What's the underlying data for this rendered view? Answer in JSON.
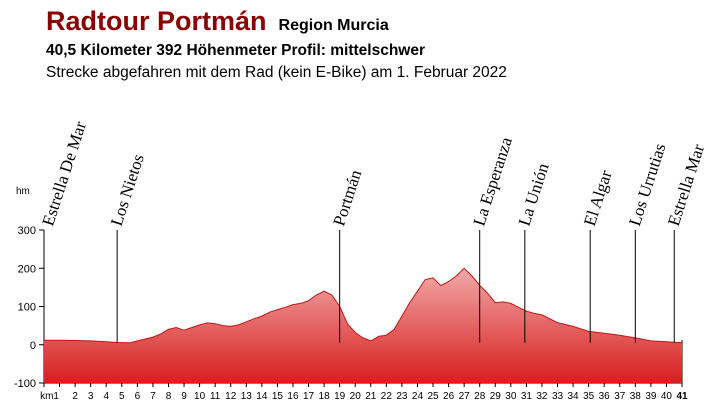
{
  "header": {
    "title": "Radtour Portmán",
    "region": "Region Murcia",
    "stats": "40,5 Kilometer  392 Höhenmeter  Profil: mittelschwer",
    "note": "Strecke abgefahren mit dem Rad (kein E-Bike) am 1. Februar 2022"
  },
  "colors": {
    "title": "#8b0000",
    "fill_top": "#f2a9a9",
    "fill_bottom": "#d81e1e",
    "line": "#c01818"
  },
  "chart_data": {
    "type": "area",
    "ylabel": "hm",
    "xlabel": "km",
    "ylim": [
      -100,
      300
    ],
    "xlim": [
      0,
      41
    ],
    "yticks": [
      -100,
      0,
      100,
      200,
      300
    ],
    "ytick_labels": [
      "-100",
      "0",
      "100",
      "200",
      "300"
    ],
    "xticks": [
      1,
      2,
      3,
      4,
      5,
      6,
      7,
      8,
      9,
      10,
      11,
      12,
      13,
      14,
      15,
      16,
      17,
      18,
      19,
      20,
      21,
      22,
      23,
      24,
      25,
      26,
      27,
      28,
      29,
      30,
      31,
      32,
      33,
      34,
      35,
      36,
      37,
      38,
      39,
      40,
      41
    ],
    "xtick_labels": [
      "km1",
      "2",
      "3",
      "4",
      "5",
      "6",
      "7",
      "8",
      "9",
      "10",
      "11",
      "12",
      "13",
      "14",
      "15",
      "16",
      "17",
      "18",
      "19",
      "20",
      "21",
      "22",
      "23",
      "24",
      "25",
      "26",
      "27",
      "28",
      "29",
      "30",
      "31",
      "32",
      "33",
      "34",
      "35",
      "36",
      "37",
      "38",
      "39",
      "40",
      "41"
    ],
    "series": [
      {
        "x": [
          0,
          1,
          2,
          3,
          4,
          4.7,
          5.5,
          6,
          6.5,
          7,
          7.5,
          8,
          8.5,
          9,
          9.5,
          10,
          10.5,
          11,
          11.5,
          12,
          12.5,
          13,
          13.5,
          14,
          14.5,
          15,
          15.5,
          16,
          16.5,
          17,
          17.5,
          18,
          18.5,
          19,
          19.5,
          20,
          20.5,
          21,
          21.5,
          22,
          22.5,
          23,
          23.5,
          24,
          24.5,
          25,
          25.5,
          26,
          26.5,
          27,
          27.5,
          28,
          28.5,
          29,
          29.5,
          30,
          30.5,
          31,
          31.5,
          32,
          33,
          34,
          35,
          36,
          37,
          38,
          39,
          40,
          41
        ],
        "y": [
          12,
          12,
          11,
          10,
          8,
          6,
          5,
          10,
          15,
          20,
          28,
          40,
          45,
          38,
          45,
          52,
          57,
          55,
          50,
          48,
          52,
          60,
          68,
          75,
          85,
          92,
          98,
          105,
          108,
          115,
          130,
          140,
          130,
          100,
          55,
          32,
          18,
          10,
          22,
          25,
          40,
          75,
          110,
          140,
          170,
          175,
          155,
          165,
          180,
          200,
          180,
          155,
          135,
          110,
          112,
          108,
          98,
          88,
          82,
          78,
          58,
          48,
          35,
          30,
          25,
          18,
          10,
          8,
          5
        ]
      }
    ],
    "annotations": [
      {
        "km": 0.3,
        "label": "Estrella De Mar",
        "line": false
      },
      {
        "km": 4.7,
        "label": "Los Nietos",
        "line": true
      },
      {
        "km": 19.0,
        "label": "Portmán",
        "line": true
      },
      {
        "km": 28.0,
        "label": "La Esperanza",
        "line": true
      },
      {
        "km": 30.9,
        "label": "La Unión",
        "line": true
      },
      {
        "km": 35.1,
        "label": "El Algar",
        "line": true
      },
      {
        "km": 38.0,
        "label": "Los Urrutias",
        "line": true
      },
      {
        "km": 40.5,
        "label": "Estrella Mar",
        "line": true
      }
    ]
  }
}
